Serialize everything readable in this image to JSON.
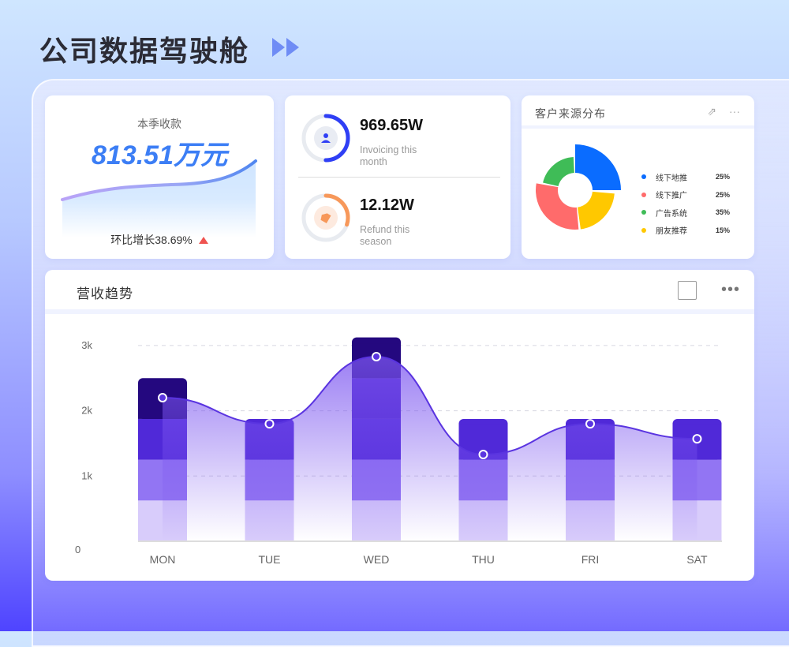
{
  "header": {
    "title": "公司数据驾驶舱"
  },
  "revenue_card": {
    "label": "本季收款",
    "value": "813.51万元",
    "growth": "环比增长38.69%",
    "trend": "up"
  },
  "stats": [
    {
      "value": "969.65W",
      "label": "Invoicing this month",
      "icon": "user-icon",
      "progress": 0.5,
      "color": "#2f3ff5"
    },
    {
      "value": "12.12W",
      "label": "Refund this season",
      "icon": "tag-icon",
      "progress": 0.3,
      "color": "#f7985a"
    }
  ],
  "source_card": {
    "title": "客户来源分布",
    "items": [
      {
        "name": "线下地推",
        "pct": "25%",
        "color": "#0a6cff"
      },
      {
        "name": "线下推广",
        "pct": "25%",
        "color": "#ff6b6b"
      },
      {
        "name": "广告系统",
        "pct": "35%",
        "color": "#3fbc57"
      },
      {
        "name": "朋友推荐",
        "pct": "15%",
        "color": "#ffc800"
      }
    ]
  },
  "chart_data": {
    "type": "bar",
    "title": "营收趋势",
    "categories": [
      "MON",
      "TUE",
      "WED",
      "THU",
      "FRI",
      "SAT"
    ],
    "series": [
      {
        "type": "bar",
        "values": [
          2500,
          1875,
          3125,
          1875,
          1875,
          1875
        ]
      },
      {
        "type": "line",
        "values": [
          2200,
          1800,
          2830,
          1330,
          1800,
          1570
        ]
      }
    ],
    "yticks": [
      "0",
      "1k",
      "2k",
      "3k"
    ],
    "ylim": [
      0,
      3000
    ],
    "grid": true,
    "colors": {
      "bar_top": "#24087f",
      "bar": "#5029d8",
      "line": "#5a34e0"
    }
  }
}
